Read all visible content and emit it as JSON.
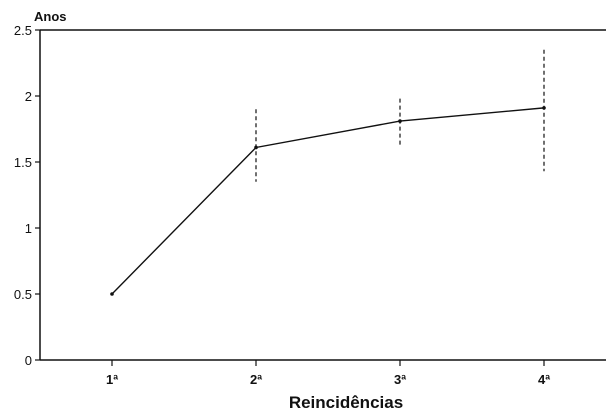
{
  "chart_data": {
    "type": "line",
    "ylabel": "Anos",
    "xlabel": "Reincidências",
    "categories": [
      "1ª",
      "2ª",
      "3ª",
      "4ª"
    ],
    "series": [
      {
        "values": [
          0.5,
          1.61,
          1.81,
          1.91
        ],
        "error_low": [
          null,
          1.35,
          1.63,
          1.43
        ],
        "error_high": [
          null,
          1.9,
          1.98,
          2.35
        ]
      }
    ],
    "ylim": [
      0,
      2.5
    ],
    "yticks": [
      "0",
      "0.5",
      "1",
      "1.5",
      "2",
      "2.5"
    ],
    "grid": false,
    "legend": "none"
  }
}
